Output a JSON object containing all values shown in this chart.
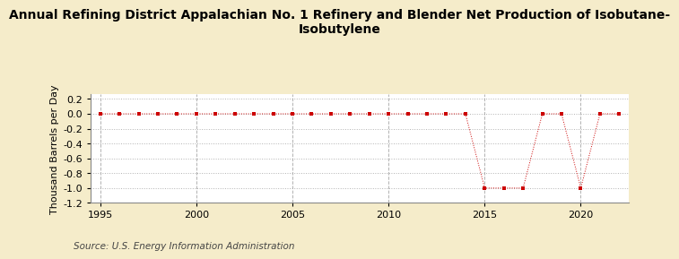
{
  "title": "Annual Refining District Appalachian No. 1 Refinery and Blender Net Production of Isobutane-\nIsobutylene",
  "ylabel": "Thousand Barrels per Day",
  "source": "Source: U.S. Energy Information Administration",
  "background_color": "#f5ecca",
  "plot_background_color": "#ffffff",
  "xlim": [
    1994.5,
    2022.5
  ],
  "ylim": [
    -1.2,
    0.26
  ],
  "yticks": [
    0.2,
    0.0,
    -0.2,
    -0.4,
    -0.6,
    -0.8,
    -1.0,
    -1.2
  ],
  "xticks": [
    1995,
    2000,
    2005,
    2010,
    2015,
    2020
  ],
  "years": [
    1995,
    1996,
    1997,
    1998,
    1999,
    2000,
    2001,
    2002,
    2003,
    2004,
    2005,
    2006,
    2007,
    2008,
    2009,
    2010,
    2011,
    2012,
    2013,
    2014,
    2015,
    2016,
    2017,
    2018,
    2019,
    2020,
    2021,
    2022
  ],
  "values": [
    0,
    0,
    0,
    0,
    0,
    0,
    0,
    0,
    0,
    0,
    0,
    0,
    0,
    0,
    0,
    0,
    0,
    0,
    0,
    0,
    -1.0,
    -1.0,
    -1.0,
    0,
    0,
    -1.0,
    0,
    0
  ],
  "line_color": "#cc0000",
  "marker": "s",
  "marker_size": 3.5,
  "title_fontsize": 10,
  "axis_fontsize": 8,
  "tick_fontsize": 8,
  "source_fontsize": 7.5
}
